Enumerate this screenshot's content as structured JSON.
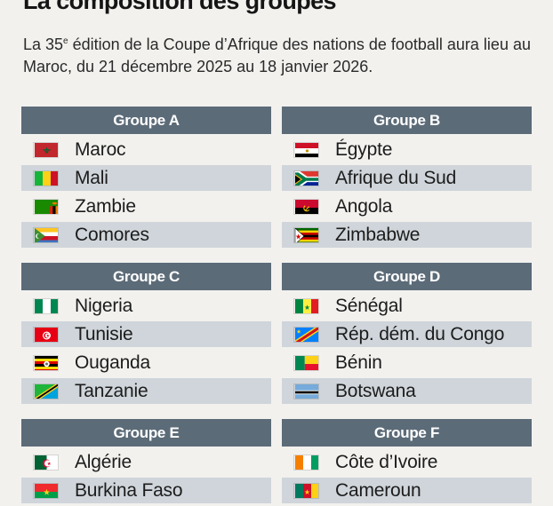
{
  "title": "La composition des groupes",
  "intro": {
    "before": "La 35",
    "sup": "e",
    "after": " édition de la Coupe d’Afrique des nations de football aura lieu au Maroc, du 21 décembre 2025 au 18 janvier 2026."
  },
  "colors": {
    "header": "#5c6b78",
    "shaded_row": "#cfd5da",
    "background": "#f2f1ee"
  },
  "groups": [
    {
      "name": "Groupe A",
      "teams": [
        {
          "name": "Maroc",
          "flag": "morocco-flag"
        },
        {
          "name": "Mali",
          "flag": "mali-flag"
        },
        {
          "name": "Zambie",
          "flag": "zambia-flag"
        },
        {
          "name": "Comores",
          "flag": "comoros-flag"
        }
      ]
    },
    {
      "name": "Groupe B",
      "teams": [
        {
          "name": "Égypte",
          "flag": "egypt-flag"
        },
        {
          "name": "Afrique du Sud",
          "flag": "south-africa-flag"
        },
        {
          "name": "Angola",
          "flag": "angola-flag"
        },
        {
          "name": "Zimbabwe",
          "flag": "zimbabwe-flag"
        }
      ]
    },
    {
      "name": "Groupe C",
      "teams": [
        {
          "name": "Nigeria",
          "flag": "nigeria-flag"
        },
        {
          "name": "Tunisie",
          "flag": "tunisia-flag"
        },
        {
          "name": "Ouganda",
          "flag": "uganda-flag"
        },
        {
          "name": "Tanzanie",
          "flag": "tanzania-flag"
        }
      ]
    },
    {
      "name": "Groupe D",
      "teams": [
        {
          "name": "Sénégal",
          "flag": "senegal-flag"
        },
        {
          "name": "Rép. dém. du Congo",
          "flag": "dr-congo-flag"
        },
        {
          "name": "Bénin",
          "flag": "benin-flag"
        },
        {
          "name": "Botswana",
          "flag": "botswana-flag"
        }
      ]
    },
    {
      "name": "Groupe E",
      "teams": [
        {
          "name": "Algérie",
          "flag": "algeria-flag"
        },
        {
          "name": "Burkina Faso",
          "flag": "burkina-faso-flag"
        }
      ]
    },
    {
      "name": "Groupe F",
      "teams": [
        {
          "name": "Côte d’Ivoire",
          "flag": "ivory-coast-flag"
        },
        {
          "name": "Cameroun",
          "flag": "cameroon-flag"
        }
      ]
    }
  ]
}
